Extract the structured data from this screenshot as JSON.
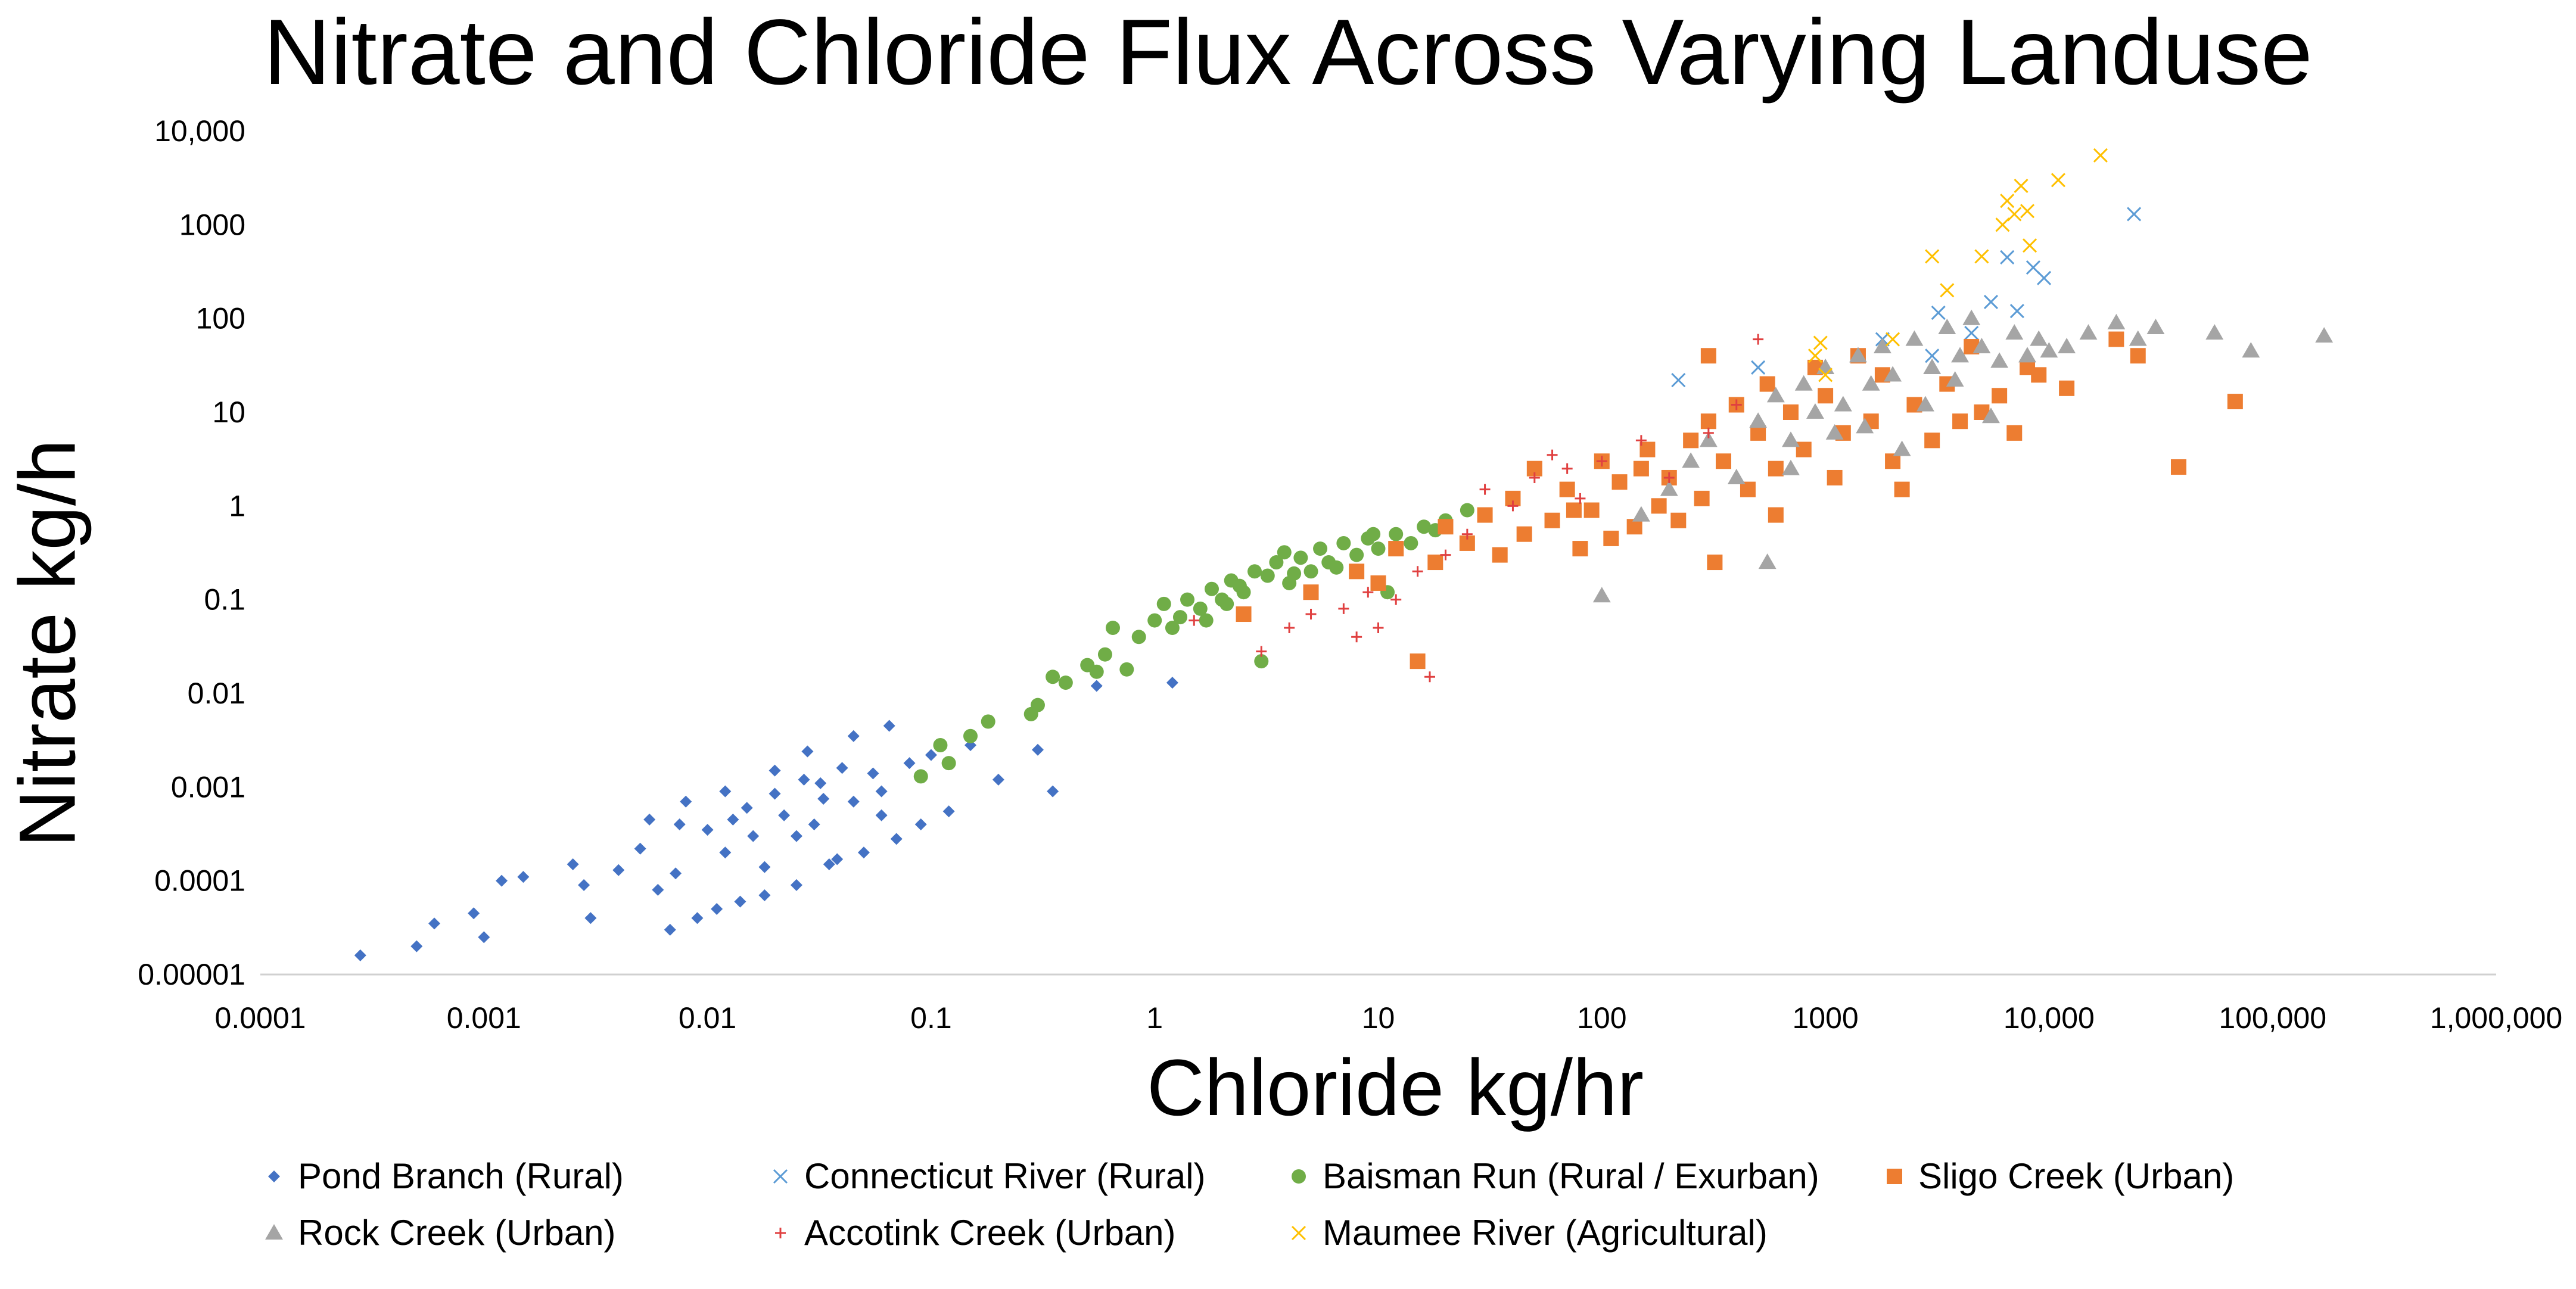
{
  "chart_data": {
    "type": "scatter",
    "title": "Nitrate and Chloride Flux Across Varying Landuse",
    "xlabel": "Chloride kg/hr",
    "ylabel": "Nitrate kg/h",
    "x_scale": "log",
    "y_scale": "log",
    "xlim": [
      0.0001,
      1000000
    ],
    "ylim": [
      1e-05,
      10000
    ],
    "x_ticks": [
      "0.0001",
      "0.001",
      "0.01",
      "0.1",
      "1",
      "10",
      "100",
      "1000",
      "10,000",
      "100,000",
      "1,000,000"
    ],
    "y_ticks": [
      "0.00001",
      "0.0001",
      "0.001",
      "0.01",
      "0.1",
      "1",
      "10",
      "100",
      "1000",
      "10,000"
    ],
    "grid": false,
    "legend_position": "bottom",
    "series": [
      {
        "name": "Pond Branch (Rural)",
        "color": "#4472C4",
        "marker": "diamond",
        "points": [
          [
            0.00028,
            1.6e-05
          ],
          [
            0.0005,
            2e-05
          ],
          [
            0.0006,
            3.5e-05
          ],
          [
            0.0009,
            4.5e-05
          ],
          [
            0.001,
            2.5e-05
          ],
          [
            0.0012,
            0.0001
          ],
          [
            0.0015,
            0.00011
          ],
          [
            0.0025,
            0.00015
          ],
          [
            0.0028,
            9e-05
          ],
          [
            0.003,
            4e-05
          ],
          [
            0.004,
            0.00013
          ],
          [
            0.005,
            0.00022
          ],
          [
            0.0055,
            0.00045
          ],
          [
            0.006,
            8e-05
          ],
          [
            0.0068,
            3e-05
          ],
          [
            0.0072,
            0.00012
          ],
          [
            0.0075,
            0.0004
          ],
          [
            0.008,
            0.0007
          ],
          [
            0.009,
            4e-05
          ],
          [
            0.01,
            0.00035
          ],
          [
            0.011,
            5e-05
          ],
          [
            0.012,
            0.0009
          ],
          [
            0.013,
            0.00045
          ],
          [
            0.014,
            6e-05
          ],
          [
            0.015,
            0.0006
          ],
          [
            0.016,
            0.0003
          ],
          [
            0.018,
            7e-05
          ],
          [
            0.02,
            0.00085
          ],
          [
            0.022,
            0.0005
          ],
          [
            0.025,
            9e-05
          ],
          [
            0.027,
            0.0012
          ],
          [
            0.03,
            0.0004
          ],
          [
            0.032,
            0.0011
          ],
          [
            0.035,
            0.00015
          ],
          [
            0.04,
            0.0016
          ],
          [
            0.045,
            0.0007
          ],
          [
            0.05,
            0.0002
          ],
          [
            0.055,
            0.0014
          ],
          [
            0.06,
            0.0005
          ],
          [
            0.07,
            0.00028
          ],
          [
            0.08,
            0.0018
          ],
          [
            0.09,
            0.0004
          ],
          [
            0.1,
            0.0022
          ],
          [
            0.12,
            0.00055
          ],
          [
            0.15,
            0.0028
          ],
          [
            0.2,
            0.0012
          ],
          [
            0.3,
            0.0025
          ],
          [
            0.35,
            0.0009
          ],
          [
            0.55,
            0.012
          ],
          [
            1.2,
            0.013
          ],
          [
            0.02,
            0.0015
          ],
          [
            0.028,
            0.0024
          ],
          [
            0.045,
            0.0035
          ],
          [
            0.065,
            0.0045
          ],
          [
            0.038,
            0.00017
          ],
          [
            0.018,
            0.00014
          ],
          [
            0.012,
            0.0002
          ],
          [
            0.06,
            0.0009
          ],
          [
            0.025,
            0.0003
          ],
          [
            0.033,
            0.00075
          ]
        ]
      },
      {
        "name": "Connecticut River (Rural)",
        "color": "#5B9BD5",
        "marker": "x",
        "points": [
          [
            220,
            22
          ],
          [
            500,
            30
          ],
          [
            1800,
            60
          ],
          [
            3200,
            115
          ],
          [
            4500,
            70
          ],
          [
            5500,
            150
          ],
          [
            6500,
            450
          ],
          [
            7200,
            120
          ],
          [
            8500,
            350
          ],
          [
            9500,
            270
          ],
          [
            24000,
            1300
          ],
          [
            3000,
            40
          ]
        ]
      },
      {
        "name": "Baisman Run (Rural / Exurban)",
        "color": "#70AD47",
        "marker": "circle",
        "points": [
          [
            0.09,
            0.0013
          ],
          [
            0.11,
            0.0028
          ],
          [
            0.12,
            0.0018
          ],
          [
            0.15,
            0.0035
          ],
          [
            0.18,
            0.005
          ],
          [
            0.28,
            0.006
          ],
          [
            0.3,
            0.0075
          ],
          [
            0.35,
            0.015
          ],
          [
            0.4,
            0.013
          ],
          [
            0.5,
            0.02
          ],
          [
            0.55,
            0.017
          ],
          [
            0.6,
            0.026
          ],
          [
            0.65,
            0.05
          ],
          [
            0.75,
            0.018
          ],
          [
            0.85,
            0.04
          ],
          [
            1,
            0.06
          ],
          [
            1.1,
            0.09
          ],
          [
            1.2,
            0.05
          ],
          [
            1.4,
            0.1
          ],
          [
            1.6,
            0.08
          ],
          [
            1.8,
            0.13
          ],
          [
            2,
            0.1
          ],
          [
            2.2,
            0.16
          ],
          [
            2.5,
            0.12
          ],
          [
            2.8,
            0.2
          ],
          [
            3,
            0.022
          ],
          [
            3.2,
            0.18
          ],
          [
            3.5,
            0.25
          ],
          [
            4,
            0.15
          ],
          [
            4.5,
            0.28
          ],
          [
            5,
            0.2
          ],
          [
            5.5,
            0.35
          ],
          [
            6,
            0.25
          ],
          [
            7,
            0.4
          ],
          [
            8,
            0.3
          ],
          [
            9,
            0.45
          ],
          [
            10,
            0.35
          ],
          [
            11,
            0.12
          ],
          [
            12,
            0.5
          ],
          [
            14,
            0.4
          ],
          [
            16,
            0.6
          ],
          [
            18,
            0.55
          ],
          [
            20,
            0.7
          ],
          [
            25,
            0.9
          ],
          [
            1.3,
            0.065
          ],
          [
            2.4,
            0.14
          ],
          [
            3.8,
            0.32
          ],
          [
            6.5,
            0.22
          ],
          [
            9.5,
            0.5
          ],
          [
            1.7,
            0.06
          ],
          [
            2.1,
            0.09
          ],
          [
            4.2,
            0.19
          ]
        ]
      },
      {
        "name": "Sligo Creek (Urban)",
        "color": "#ED7D31",
        "marker": "square",
        "points": [
          [
            2.5,
            0.07
          ],
          [
            5,
            0.12
          ],
          [
            8,
            0.2
          ],
          [
            10,
            0.15
          ],
          [
            12,
            0.35
          ],
          [
            15,
            0.022
          ],
          [
            18,
            0.25
          ],
          [
            20,
            0.6
          ],
          [
            25,
            0.4
          ],
          [
            30,
            0.8
          ],
          [
            35,
            0.3
          ],
          [
            40,
            1.2
          ],
          [
            45,
            0.5
          ],
          [
            50,
            2.5
          ],
          [
            60,
            0.7
          ],
          [
            70,
            1.5
          ],
          [
            80,
            0.35
          ],
          [
            90,
            0.9
          ],
          [
            100,
            3
          ],
          [
            110,
            0.45
          ],
          [
            120,
            1.8
          ],
          [
            140,
            0.6
          ],
          [
            160,
            4
          ],
          [
            180,
            1
          ],
          [
            200,
            2
          ],
          [
            220,
            0.7
          ],
          [
            250,
            5
          ],
          [
            280,
            1.2
          ],
          [
            300,
            8
          ],
          [
            320,
            0.25
          ],
          [
            350,
            3
          ],
          [
            400,
            12
          ],
          [
            450,
            1.5
          ],
          [
            500,
            6
          ],
          [
            550,
            20
          ],
          [
            600,
            2.5
          ],
          [
            700,
            10
          ],
          [
            800,
            4
          ],
          [
            900,
            30
          ],
          [
            1000,
            15
          ],
          [
            1100,
            2
          ],
          [
            1200,
            6
          ],
          [
            1400,
            40
          ],
          [
            1600,
            8
          ],
          [
            1800,
            25
          ],
          [
            2000,
            3
          ],
          [
            2500,
            12
          ],
          [
            3000,
            5
          ],
          [
            3500,
            20
          ],
          [
            4000,
            8
          ],
          [
            4500,
            50
          ],
          [
            5000,
            10
          ],
          [
            6000,
            15
          ],
          [
            7000,
            6
          ],
          [
            8000,
            30
          ],
          [
            9000,
            25
          ],
          [
            12000,
            18
          ],
          [
            20000,
            60
          ],
          [
            25000,
            40
          ],
          [
            38000,
            2.6
          ],
          [
            68000,
            13
          ],
          [
            300,
            40
          ],
          [
            150,
            2.5
          ],
          [
            75,
            0.9
          ],
          [
            2200,
            1.5
          ],
          [
            600,
            0.8
          ]
        ]
      },
      {
        "name": "Rock Creek (Urban)",
        "color": "#A5A5A5",
        "marker": "triangle",
        "points": [
          [
            100,
            0.11
          ],
          [
            150,
            0.8
          ],
          [
            200,
            1.5
          ],
          [
            250,
            3
          ],
          [
            300,
            5
          ],
          [
            400,
            2
          ],
          [
            500,
            8
          ],
          [
            550,
            0.25
          ],
          [
            600,
            15
          ],
          [
            700,
            5
          ],
          [
            800,
            20
          ],
          [
            900,
            10
          ],
          [
            1000,
            30
          ],
          [
            1200,
            12
          ],
          [
            1400,
            40
          ],
          [
            1600,
            20
          ],
          [
            1800,
            50
          ],
          [
            2000,
            25
          ],
          [
            2500,
            60
          ],
          [
            3000,
            30
          ],
          [
            3500,
            80
          ],
          [
            4000,
            40
          ],
          [
            4500,
            100
          ],
          [
            5000,
            50
          ],
          [
            6000,
            35
          ],
          [
            7000,
            70
          ],
          [
            8000,
            40
          ],
          [
            9000,
            60
          ],
          [
            10000,
            45
          ],
          [
            12000,
            50
          ],
          [
            15000,
            70
          ],
          [
            20000,
            90
          ],
          [
            25000,
            60
          ],
          [
            30000,
            80
          ],
          [
            55000,
            70
          ],
          [
            80000,
            45
          ],
          [
            170000,
            65
          ],
          [
            1500,
            7
          ],
          [
            2200,
            4
          ],
          [
            2800,
            12
          ],
          [
            3800,
            22
          ],
          [
            700,
            2.5
          ],
          [
            1100,
            6
          ],
          [
            5500,
            9
          ]
        ]
      },
      {
        "name": "Accotink Creek (Urban)",
        "color": "#E04040",
        "marker": "plus",
        "points": [
          [
            4,
            0.05
          ],
          [
            5,
            0.07
          ],
          [
            7,
            0.08
          ],
          [
            8,
            0.04
          ],
          [
            10,
            0.05
          ],
          [
            12,
            0.1
          ],
          [
            15,
            0.2
          ],
          [
            17,
            0.015
          ],
          [
            20,
            0.3
          ],
          [
            25,
            0.5
          ],
          [
            30,
            1.5
          ],
          [
            40,
            1
          ],
          [
            50,
            2
          ],
          [
            60,
            3.5
          ],
          [
            70,
            2.5
          ],
          [
            80,
            1.2
          ],
          [
            100,
            3
          ],
          [
            150,
            5
          ],
          [
            200,
            2
          ],
          [
            300,
            6
          ],
          [
            400,
            12
          ],
          [
            500,
            60
          ],
          [
            3,
            0.028
          ],
          [
            1.5,
            0.06
          ],
          [
            9,
            0.12
          ]
        ]
      },
      {
        "name": "Maumee River (Agricultural)",
        "color": "#FFC000",
        "marker": "x",
        "points": [
          [
            900,
            40
          ],
          [
            950,
            55
          ],
          [
            1000,
            25
          ],
          [
            3000,
            460
          ],
          [
            3500,
            200
          ],
          [
            5000,
            460
          ],
          [
            6200,
            1000
          ],
          [
            6500,
            1800
          ],
          [
            7000,
            1300
          ],
          [
            7500,
            2600
          ],
          [
            8000,
            1400
          ],
          [
            8200,
            600
          ],
          [
            11000,
            3000
          ],
          [
            17000,
            5500
          ],
          [
            2000,
            60
          ]
        ]
      }
    ]
  }
}
